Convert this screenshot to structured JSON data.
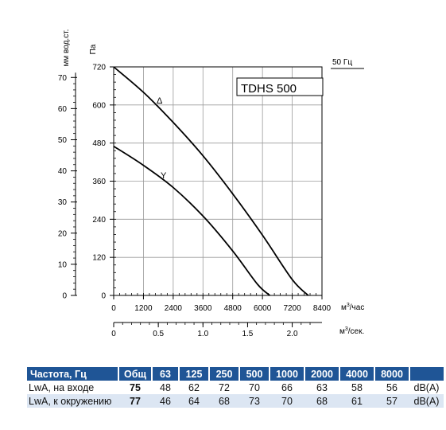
{
  "chart_data": {
    "type": "line",
    "model_box": "TDHS 500",
    "freq_label": "50 Гц",
    "y_left_label": "мм вод.ст.",
    "y_left_ticks": [
      "0",
      "10",
      "20",
      "30",
      "40",
      "50",
      "60",
      "70"
    ],
    "y_pa_label": "Па",
    "y_pa_ticks": [
      "0",
      "120",
      "240",
      "360",
      "480",
      "600",
      "720"
    ],
    "x_m3h_label": "м³/час",
    "x_m3h_ticks": [
      "0",
      "1200",
      "2400",
      "3600",
      "4800",
      "6000",
      "7200",
      "8400"
    ],
    "x_m3s_label": "м³/сек.",
    "x_m3s_ticks": [
      "0",
      "0.5",
      "1.0",
      "1.5",
      "2.0"
    ],
    "xlim": [
      0,
      8400
    ],
    "ylim": [
      0,
      720
    ],
    "grid": true,
    "series": [
      {
        "name": "Δ",
        "x": [
          0,
          1200,
          2400,
          3600,
          4800,
          6000,
          7200,
          7850
        ],
        "y": [
          720,
          640,
          545,
          440,
          320,
          190,
          50,
          0
        ]
      },
      {
        "name": "Y",
        "x": [
          0,
          1200,
          2400,
          3600,
          4800,
          5800,
          6300
        ],
        "y": [
          470,
          410,
          340,
          250,
          140,
          35,
          0
        ]
      }
    ]
  },
  "table": {
    "header": [
      "Частота, Гц",
      "Общ",
      "63",
      "125",
      "250",
      "500",
      "1000",
      "2000",
      "4000",
      "8000",
      ""
    ],
    "rows": [
      {
        "label": "LwA, на входе",
        "total": "75",
        "values": [
          "48",
          "62",
          "72",
          "70",
          "66",
          "63",
          "58",
          "56"
        ],
        "unit": "dB(A)"
      },
      {
        "label": "LwA, к окружению",
        "total": "77",
        "values": [
          "46",
          "64",
          "68",
          "73",
          "70",
          "68",
          "61",
          "57"
        ],
        "unit": "dB(A)"
      }
    ]
  }
}
